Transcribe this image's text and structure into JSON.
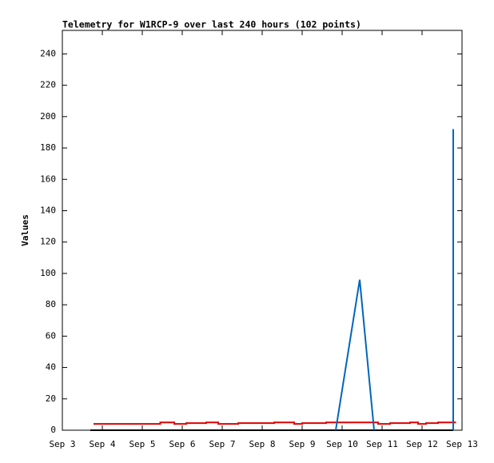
{
  "chart_data": {
    "type": "line",
    "title": "Telemetry for W1RCP-9 over last 240 hours (102 points)",
    "ylabel": "Values",
    "xlim": [
      3,
      13
    ],
    "xticks": [
      {
        "value": 3,
        "label": "Sep 3"
      },
      {
        "value": 4,
        "label": "Sep 4"
      },
      {
        "value": 5,
        "label": "Sep 5"
      },
      {
        "value": 6,
        "label": "Sep 6"
      },
      {
        "value": 7,
        "label": "Sep 7"
      },
      {
        "value": 8,
        "label": "Sep 8"
      },
      {
        "value": 9,
        "label": "Sep 9"
      },
      {
        "value": 10,
        "label": "Sep 10"
      },
      {
        "value": 11,
        "label": "Sep 11"
      },
      {
        "value": 12,
        "label": "Sep 12"
      },
      {
        "value": 13,
        "label": "Sep 13"
      }
    ],
    "ylim": [
      0,
      255
    ],
    "yticks": [
      0,
      20,
      40,
      60,
      80,
      100,
      120,
      140,
      160,
      180,
      200,
      220,
      240
    ],
    "series": [
      {
        "color": "#e00000",
        "x": [
          3.78,
          5.45,
          5.45,
          5.8,
          5.8,
          6.1,
          6.1,
          6.6,
          6.6,
          6.9,
          6.9,
          7.4,
          7.4,
          8.3,
          8.3,
          8.8,
          8.8,
          9.0,
          9.0,
          9.6,
          9.6,
          10.9,
          10.9,
          11.2,
          11.2,
          11.7,
          11.7,
          11.9,
          11.9,
          12.1,
          12.1,
          12.4,
          12.4,
          12.85
        ],
        "values": [
          4,
          4,
          5,
          5,
          4,
          4,
          4.5,
          4.5,
          5,
          5,
          4,
          4,
          4.5,
          4.5,
          5,
          5,
          4,
          4,
          4.5,
          4.5,
          5,
          5,
          4,
          4,
          4.5,
          4.5,
          5,
          5,
          4,
          4,
          4.5,
          4.5,
          5,
          5
        ]
      },
      {
        "color": "#000000",
        "x": [
          3.7,
          12.78
        ],
        "values": [
          0,
          0
        ]
      },
      {
        "color": "#0066bb",
        "x": [
          9.84,
          10.44,
          10.8,
          11.5,
          12.78,
          12.78
        ],
        "values": [
          0,
          96,
          0,
          null,
          0,
          192
        ]
      }
    ]
  }
}
